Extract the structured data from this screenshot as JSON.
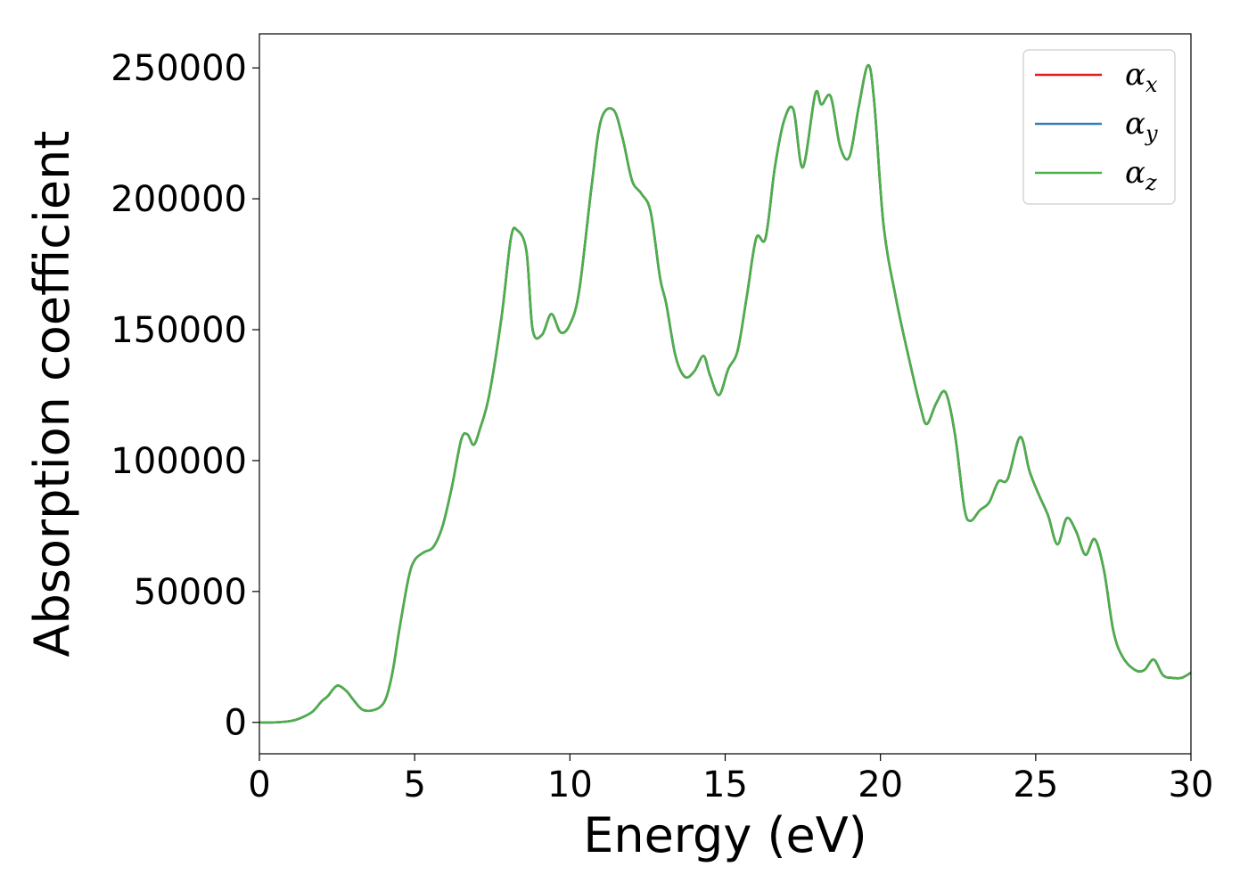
{
  "chart_data": {
    "type": "line",
    "xlabel": "Energy (eV)",
    "ylabel": "Absorption coefficient",
    "xlim": [
      0,
      30
    ],
    "ylim": [
      -12000,
      263000
    ],
    "xticks": [
      0,
      5,
      10,
      15,
      20,
      25,
      30
    ],
    "xtick_labels": [
      "0",
      "5",
      "10",
      "15",
      "20",
      "25",
      "30"
    ],
    "yticks": [
      0,
      50000,
      100000,
      150000,
      200000,
      250000
    ],
    "ytick_labels": [
      "0",
      "50000",
      "100000",
      "150000",
      "200000",
      "250000"
    ],
    "grid": false,
    "legend_position": "top-right",
    "x": [
      0,
      0.5,
      1.0,
      1.3,
      1.7,
      2.0,
      2.2,
      2.5,
      2.8,
      3.0,
      3.3,
      3.6,
      3.9,
      4.1,
      4.3,
      4.5,
      4.8,
      5.0,
      5.3,
      5.6,
      5.9,
      6.2,
      6.5,
      6.7,
      6.9,
      7.1,
      7.4,
      7.8,
      8.1,
      8.3,
      8.6,
      8.8,
      9.1,
      9.4,
      9.7,
      10.0,
      10.3,
      10.7,
      11.0,
      11.4,
      11.7,
      12.0,
      12.3,
      12.6,
      12.9,
      13.1,
      13.4,
      13.7,
      14.0,
      14.3,
      14.5,
      14.8,
      15.1,
      15.4,
      15.7,
      16.0,
      16.3,
      16.6,
      16.9,
      17.2,
      17.5,
      17.9,
      18.1,
      18.4,
      18.7,
      19.0,
      19.3,
      19.6,
      19.8,
      20.1,
      20.5,
      20.9,
      21.3,
      21.5,
      21.8,
      22.1,
      22.4,
      22.7,
      22.9,
      23.2,
      23.5,
      23.8,
      24.1,
      24.5,
      24.8,
      25.1,
      25.4,
      25.7,
      26.0,
      26.3,
      26.6,
      26.9,
      27.2,
      27.5,
      27.8,
      28.2,
      28.5,
      28.8,
      29.1,
      29.4,
      29.7,
      30.0
    ],
    "series": [
      {
        "name": "αx",
        "color": "#e41a1c",
        "values": [
          0,
          0,
          500,
          1500,
          4000,
          8000,
          10000,
          14000,
          12000,
          9000,
          5000,
          4500,
          6000,
          10000,
          20000,
          35000,
          55000,
          62000,
          65000,
          67000,
          75000,
          90000,
          108000,
          110000,
          106000,
          112000,
          125000,
          155000,
          185000,
          188000,
          180000,
          150000,
          148000,
          156000,
          149000,
          152000,
          165000,
          205000,
          230000,
          234000,
          223000,
          207000,
          202000,
          195000,
          170000,
          160000,
          140000,
          132000,
          134000,
          140000,
          133000,
          125000,
          135000,
          142000,
          163000,
          185000,
          185000,
          212000,
          230000,
          234000,
          212000,
          240000,
          236000,
          239000,
          220000,
          216000,
          235000,
          251000,
          237000,
          190000,
          162000,
          140000,
          120000,
          114000,
          122000,
          126000,
          110000,
          82000,
          77000,
          81000,
          84000,
          92000,
          93000,
          109000,
          96000,
          87000,
          79000,
          68000,
          78000,
          73000,
          64000,
          70000,
          58000,
          35000,
          25000,
          20000,
          20000,
          24000,
          18000,
          17000,
          17000,
          19000
        ]
      },
      {
        "name": "αy",
        "color": "#377eb8",
        "values": [
          0,
          0,
          500,
          1500,
          4000,
          8000,
          10000,
          14000,
          12000,
          9000,
          5000,
          4500,
          6000,
          10000,
          20000,
          35000,
          55000,
          62000,
          65000,
          67000,
          75000,
          90000,
          108000,
          110000,
          106000,
          112000,
          125000,
          155000,
          185000,
          188000,
          180000,
          150000,
          148000,
          156000,
          149000,
          152000,
          165000,
          205000,
          230000,
          234000,
          223000,
          207000,
          202000,
          195000,
          170000,
          160000,
          140000,
          132000,
          134000,
          140000,
          133000,
          125000,
          135000,
          142000,
          163000,
          185000,
          185000,
          212000,
          230000,
          234000,
          212000,
          240000,
          236000,
          239000,
          220000,
          216000,
          235000,
          251000,
          237000,
          190000,
          162000,
          140000,
          120000,
          114000,
          122000,
          126000,
          110000,
          82000,
          77000,
          81000,
          84000,
          92000,
          93000,
          109000,
          96000,
          87000,
          79000,
          68000,
          78000,
          73000,
          64000,
          70000,
          58000,
          35000,
          25000,
          20000,
          20000,
          24000,
          18000,
          17000,
          17000,
          19000
        ]
      },
      {
        "name": "αz",
        "color": "#4daf4a",
        "values": [
          0,
          0,
          500,
          1500,
          4000,
          8000,
          10000,
          14000,
          12000,
          9000,
          5000,
          4500,
          6000,
          10000,
          20000,
          35000,
          55000,
          62000,
          65000,
          67000,
          75000,
          90000,
          108000,
          110000,
          106000,
          112000,
          125000,
          155000,
          185000,
          188000,
          180000,
          150000,
          148000,
          156000,
          149000,
          152000,
          165000,
          205000,
          230000,
          234000,
          223000,
          207000,
          202000,
          195000,
          170000,
          160000,
          140000,
          132000,
          134000,
          140000,
          133000,
          125000,
          135000,
          142000,
          163000,
          185000,
          185000,
          212000,
          230000,
          234000,
          212000,
          240000,
          236000,
          239000,
          220000,
          216000,
          235000,
          251000,
          237000,
          190000,
          162000,
          140000,
          120000,
          114000,
          122000,
          126000,
          110000,
          82000,
          77000,
          81000,
          84000,
          92000,
          93000,
          109000,
          96000,
          87000,
          79000,
          68000,
          78000,
          73000,
          64000,
          70000,
          58000,
          35000,
          25000,
          20000,
          20000,
          24000,
          18000,
          17000,
          17000,
          19000
        ]
      }
    ],
    "legend": [
      {
        "symbol": "α",
        "subscript": "x",
        "color": "#e41a1c"
      },
      {
        "symbol": "α",
        "subscript": "y",
        "color": "#377eb8"
      },
      {
        "symbol": "α",
        "subscript": "z",
        "color": "#4daf4a"
      }
    ]
  }
}
